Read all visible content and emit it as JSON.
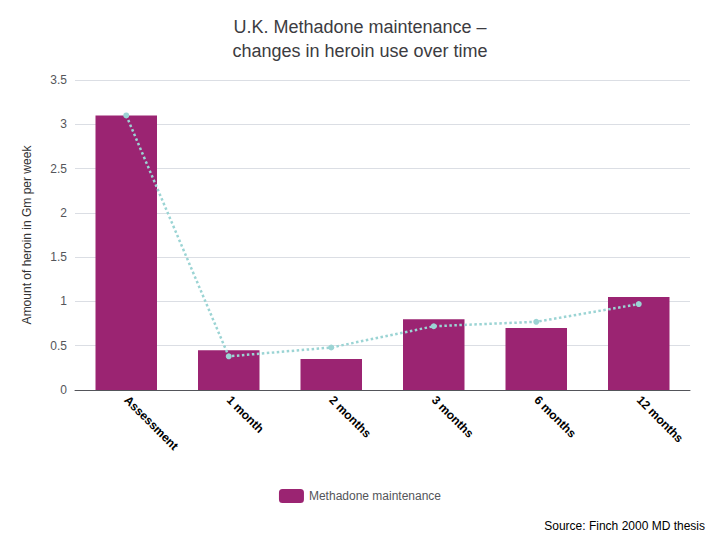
{
  "chart_data": {
    "type": "bar",
    "title": "U.K. Methadone maintenance –\nchanges in heroin use over time",
    "ylabel": "Amount of heroin in Gm per week",
    "annotation": "Source: Finch 2000 MD thesis",
    "categories": [
      "Assessment",
      "1 month",
      "2 months",
      "3 months",
      "6 months",
      "12 months"
    ],
    "series": [
      {
        "name": "Methadone maintenance",
        "type": "bar",
        "color": "#9B2472",
        "values": [
          3.1,
          0.45,
          0.35,
          0.8,
          0.7,
          1.05
        ]
      },
      {
        "type": "line",
        "color": "#9BD4D4",
        "line_style": "dotted",
        "marker": "circle",
        "values": [
          3.1,
          0.38,
          0.48,
          0.72,
          0.77,
          0.97
        ]
      }
    ],
    "ylim": [
      0,
      3.5
    ],
    "yticks": [
      0,
      0.5,
      1,
      1.5,
      2,
      2.5,
      3,
      3.5
    ],
    "grid": true,
    "legend": "bottom"
  }
}
